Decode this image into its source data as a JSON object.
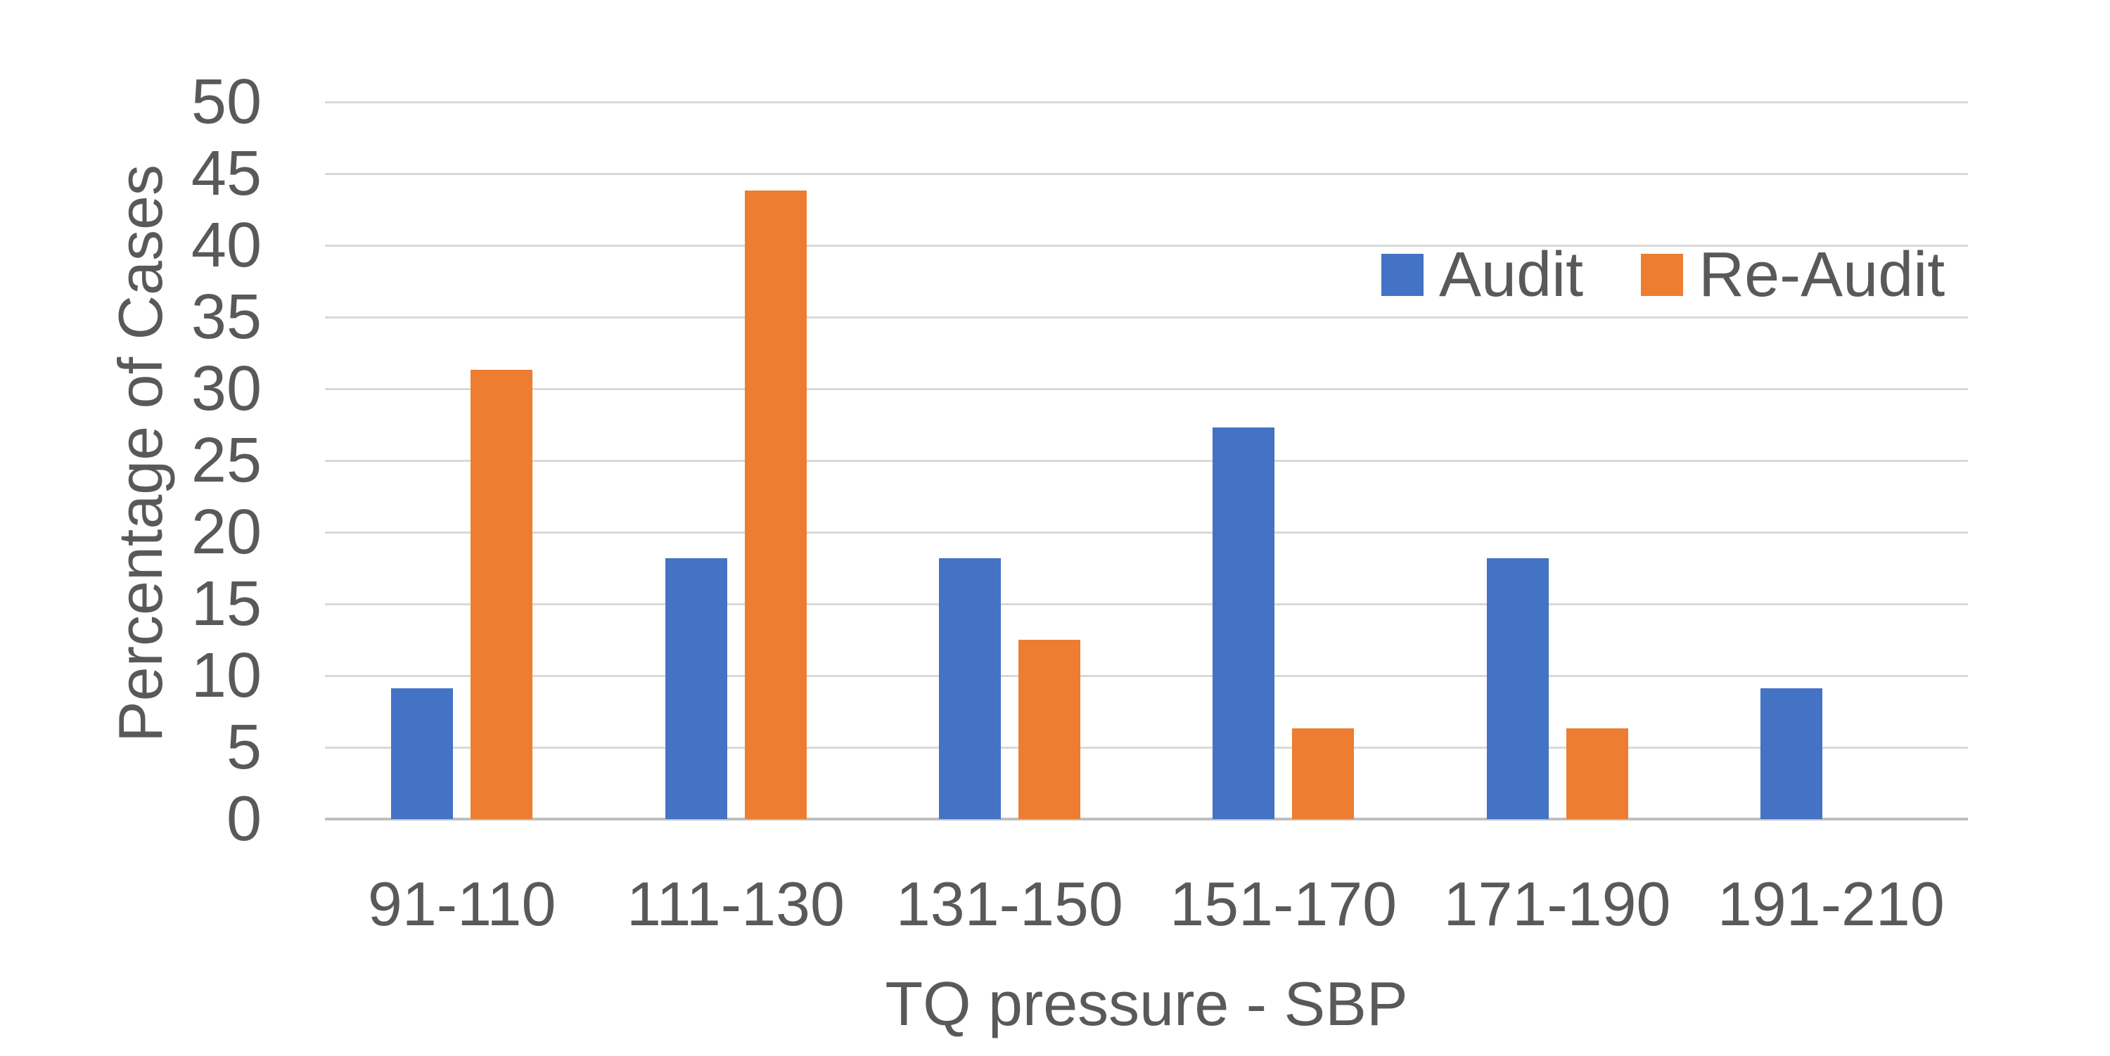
{
  "colors": {
    "audit_blue": "#4472C4",
    "reaudit_orange": "#ED7D31",
    "gridline": "#D9D9D9",
    "axis_line": "#BFBFBF",
    "text": "#595959",
    "background": "#FFFFFF"
  },
  "chart_data": {
    "type": "bar",
    "title": "",
    "categories": [
      "91-110",
      "111-130",
      "131-150",
      "151-170",
      "171-190",
      "191-210"
    ],
    "series": [
      {
        "name": "Audit",
        "color": "#4472C4",
        "values": [
          9.1,
          18.2,
          18.2,
          27.3,
          18.2,
          9.1
        ]
      },
      {
        "name": "Re-Audit",
        "color": "#ED7D31",
        "values": [
          31.3,
          43.8,
          12.5,
          6.3,
          6.3,
          0
        ]
      }
    ],
    "xlabel": "TQ pressure - SBP",
    "ylabel": "Percentage of Cases",
    "ylim": [
      0,
      50
    ],
    "ytick_step": 5,
    "yticks": [
      "0",
      "5",
      "10",
      "15",
      "20",
      "25",
      "30",
      "35",
      "40",
      "45",
      "50"
    ],
    "grid": true,
    "legend_position": "top-right-inside"
  }
}
